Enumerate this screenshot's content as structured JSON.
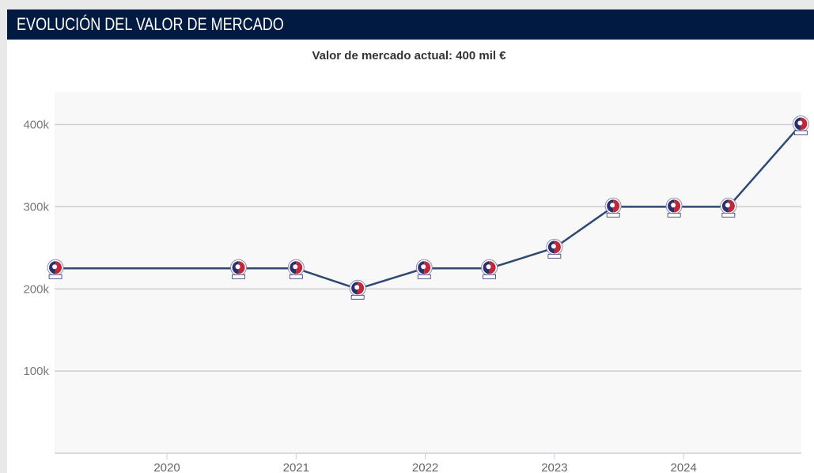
{
  "header": {
    "title": "EVOLUCIÓN DEL VALOR DE MERCADO"
  },
  "chart_data": {
    "type": "line",
    "title": "Valor de mercado actual: 400 mil €",
    "xlabel": "",
    "ylabel": "",
    "x_ticks": [
      "2020",
      "2021",
      "2022",
      "2023",
      "2024"
    ],
    "y_ticks": [
      "100k",
      "200k",
      "300k",
      "400k"
    ],
    "ylim": [
      0,
      440000
    ],
    "xlim": [
      "2019-02-15",
      "2024-12-01"
    ],
    "grid": true,
    "line_color": "#2e4a72",
    "plot_background": "#f8f8f9",
    "marker": "club-crest",
    "points": [
      {
        "date": "2019-02-20",
        "value": 225000
      },
      {
        "date": "2020-07-22",
        "value": 225000
      },
      {
        "date": "2021-01-01",
        "value": 225000
      },
      {
        "date": "2021-06-24",
        "value": 200000
      },
      {
        "date": "2021-12-29",
        "value": 225000
      },
      {
        "date": "2022-07-01",
        "value": 225000
      },
      {
        "date": "2023-01-01",
        "value": 250000
      },
      {
        "date": "2023-06-16",
        "value": 300000
      },
      {
        "date": "2023-12-05",
        "value": 300000
      },
      {
        "date": "2024-05-07",
        "value": 300000
      },
      {
        "date": "2024-11-28",
        "value": 400000
      }
    ]
  }
}
